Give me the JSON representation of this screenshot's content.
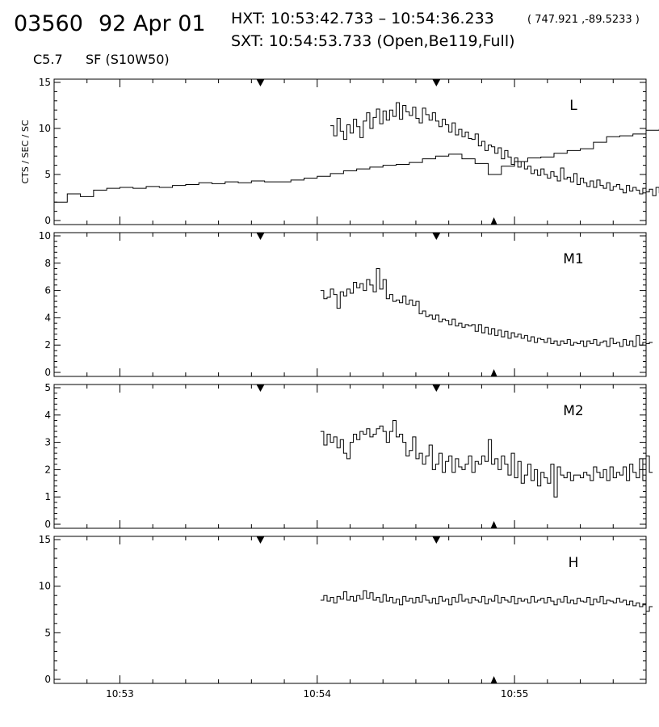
{
  "header": {
    "event_id": "03560",
    "date": "92 Apr 01",
    "hxt_line": "HXT: 10:53:42.733 – 10:54:36.233",
    "hxt_coords": "( 747.921 ,-89.5233 )",
    "sxt_line": "SXT: 10:54:53.733 (Open,Be119,Full)",
    "goes_class": "C5.7",
    "flare_info": "SF (S10W50)"
  },
  "colors": {
    "background": "#ffffff",
    "ink": "#000000"
  },
  "chart_data": {
    "type": "line",
    "step": true,
    "ylabel": "CTS / SEC / SC",
    "x_ticks": [
      "10:53",
      "10:54",
      "10:55"
    ],
    "x_range": [
      "10:52:40",
      "10:55:40"
    ],
    "marker_times": {
      "hxt_start": "10:53:42.733",
      "hxt_end": "10:54:36.233",
      "sxt": "10:54:53.733"
    },
    "panels": [
      {
        "name": "L",
        "ylim": [
          0,
          15
        ],
        "yticks": [
          0,
          5,
          10,
          15
        ],
        "series": [
          {
            "start": "10:52:40",
            "dt_seconds": 4,
            "values": [
              2.0,
              2.9,
              2.6,
              3.3,
              3.5,
              3.6,
              3.5,
              3.7,
              3.6,
              3.8,
              3.9,
              4.1,
              4.0,
              4.2,
              4.1,
              4.3,
              4.2,
              4.2,
              4.4,
              4.6,
              4.8,
              5.1,
              5.4,
              5.6,
              5.8,
              6.0,
              6.1,
              6.3,
              6.7,
              7.0,
              7.2,
              6.7,
              6.2,
              5.0,
              5.9,
              6.4,
              6.8,
              6.9,
              7.3,
              7.6,
              7.8,
              8.5,
              9.1,
              9.2,
              9.4,
              9.8,
              9.9,
              10.2,
              10.0,
              10.5,
              10.7
            ]
          },
          {
            "start": "10:54:04",
            "dt_seconds": 1,
            "values": [
              10.3,
              9.2,
              11.1,
              9.7,
              8.8,
              10.4,
              9.5,
              11.0,
              10.2,
              9.0,
              10.8,
              11.7,
              10.0,
              11.2,
              12.1,
              10.5,
              11.9,
              10.9,
              12.0,
              11.3,
              12.8,
              11.0,
              12.5,
              11.8,
              11.4,
              12.3,
              11.1,
              10.6,
              12.2,
              11.5,
              10.9,
              11.7,
              10.8,
              10.2,
              11.0,
              10.4,
              9.6,
              10.6,
              9.3,
              9.9,
              9.1,
              9.6,
              8.9,
              8.8,
              9.4,
              8.1,
              8.6,
              7.6,
              8.2,
              8.0,
              7.3,
              7.9,
              6.7,
              7.6,
              6.9,
              6.1,
              6.8,
              5.8,
              6.4,
              5.6,
              5.9,
              5.1,
              5.5,
              4.9,
              5.6,
              5.0,
              4.6,
              5.3,
              4.8,
              4.3,
              5.7,
              4.5,
              4.7,
              4.2,
              5.1,
              3.9,
              4.6,
              4.1,
              3.7,
              4.3,
              3.6,
              4.4,
              3.8,
              3.5,
              4.1,
              3.3,
              3.7,
              3.9,
              3.4,
              3.0,
              3.8,
              3.2,
              3.6,
              3.3,
              2.9,
              3.5,
              3.1,
              3.4,
              2.7,
              3.6,
              3.0,
              3.2,
              3.4,
              2.8,
              3.3,
              3.1,
              2.9,
              3.6,
              3.0,
              3.2,
              3.1,
              3.0
            ]
          }
        ]
      },
      {
        "name": "M1",
        "ylim": [
          0,
          10
        ],
        "yticks": [
          0,
          2,
          4,
          6,
          8,
          10
        ],
        "series": [
          {
            "start": "10:54:01",
            "dt_seconds": 1,
            "values": [
              6.0,
              5.4,
              5.5,
              6.1,
              5.7,
              4.7,
              5.9,
              5.6,
              6.1,
              5.8,
              6.6,
              6.2,
              6.5,
              6.0,
              6.8,
              6.4,
              5.9,
              7.6,
              6.1,
              6.8,
              5.4,
              5.7,
              5.2,
              5.3,
              5.1,
              5.6,
              5.0,
              5.3,
              4.9,
              5.2,
              4.3,
              4.5,
              4.1,
              4.2,
              3.9,
              4.2,
              3.7,
              3.9,
              3.8,
              3.5,
              3.9,
              3.4,
              3.6,
              3.3,
              3.5,
              3.4,
              3.5,
              3.0,
              3.5,
              2.9,
              3.3,
              2.8,
              3.2,
              2.7,
              3.1,
              2.6,
              3.0,
              2.5,
              2.9,
              2.6,
              2.8,
              2.5,
              2.7,
              2.3,
              2.6,
              2.2,
              2.5,
              2.4,
              2.2,
              2.5,
              2.1,
              2.3,
              2.0,
              2.3,
              2.1,
              2.4,
              2.0,
              2.2,
              2.1,
              2.3,
              1.9,
              2.3,
              2.1,
              2.4,
              2.0,
              2.2,
              2.3,
              1.9,
              2.5,
              2.1,
              2.2,
              1.9,
              2.4,
              2.0,
              2.3,
              1.9,
              2.7,
              2.0,
              2.2,
              2.1,
              2.2
            ]
          }
        ]
      },
      {
        "name": "M2",
        "ylim": [
          0,
          5
        ],
        "yticks": [
          0,
          1,
          2,
          3,
          4,
          5
        ],
        "series": [
          {
            "start": "10:54:01",
            "dt_seconds": 1,
            "values": [
              3.4,
              2.9,
              3.3,
              3.0,
              3.2,
              2.8,
              3.1,
              2.6,
              2.4,
              3.0,
              3.3,
              3.1,
              3.4,
              3.3,
              3.5,
              3.2,
              3.3,
              3.5,
              3.6,
              3.4,
              3.0,
              3.4,
              3.8,
              3.2,
              3.3,
              3.0,
              2.5,
              2.7,
              3.2,
              2.4,
              2.6,
              2.2,
              2.5,
              2.9,
              2.0,
              2.2,
              2.6,
              1.9,
              2.3,
              2.5,
              1.9,
              2.4,
              2.1,
              2.0,
              2.2,
              2.5,
              1.9,
              2.3,
              2.2,
              2.5,
              2.3,
              3.1,
              2.2,
              2.4,
              2.0,
              2.5,
              2.2,
              1.8,
              2.6,
              1.7,
              2.3,
              1.5,
              1.8,
              2.2,
              1.6,
              2.0,
              1.4,
              1.9,
              1.7,
              1.5,
              2.2,
              1.0,
              2.1,
              1.8,
              1.7,
              1.9,
              1.6,
              1.8,
              1.8,
              1.7,
              1.9,
              1.8,
              1.6,
              2.1,
              1.9,
              1.7,
              2.0,
              1.6,
              2.1,
              1.7,
              1.9,
              1.8,
              2.1,
              1.6,
              2.2,
              1.9,
              1.7,
              2.4,
              1.6,
              2.5,
              1.9
            ]
          }
        ]
      },
      {
        "name": "H",
        "ylim": [
          0,
          15
        ],
        "yticks": [
          0,
          5,
          10,
          15
        ],
        "series": [
          {
            "start": "10:54:01",
            "dt_seconds": 1,
            "values": [
              8.5,
              9.0,
              8.4,
              8.8,
              8.2,
              8.9,
              8.6,
              9.4,
              8.5,
              8.9,
              8.4,
              9.0,
              8.6,
              9.5,
              8.7,
              9.3,
              8.5,
              8.8,
              8.3,
              9.1,
              8.4,
              8.8,
              8.2,
              8.6,
              8.0,
              8.9,
              8.4,
              8.7,
              8.2,
              8.8,
              8.3,
              9.0,
              8.5,
              8.2,
              8.7,
              8.1,
              8.9,
              8.4,
              8.6,
              8.0,
              8.8,
              8.3,
              9.1,
              8.4,
              8.6,
              8.2,
              8.8,
              8.5,
              8.3,
              8.9,
              8.1,
              8.6,
              8.4,
              9.0,
              8.2,
              8.8,
              8.5,
              8.3,
              8.9,
              8.1,
              8.7,
              8.4,
              8.6,
              8.2,
              8.9,
              8.3,
              8.5,
              8.7,
              8.2,
              8.8,
              8.4,
              8.0,
              8.6,
              8.3,
              8.9,
              8.2,
              8.5,
              8.1,
              8.7,
              8.4,
              8.3,
              8.8,
              8.0,
              8.6,
              8.3,
              8.9,
              8.1,
              8.5,
              8.4,
              8.2,
              8.7,
              8.3,
              8.5,
              8.0,
              8.4,
              7.9,
              8.2,
              7.8,
              8.1,
              7.3,
              7.8
            ]
          }
        ]
      }
    ]
  }
}
